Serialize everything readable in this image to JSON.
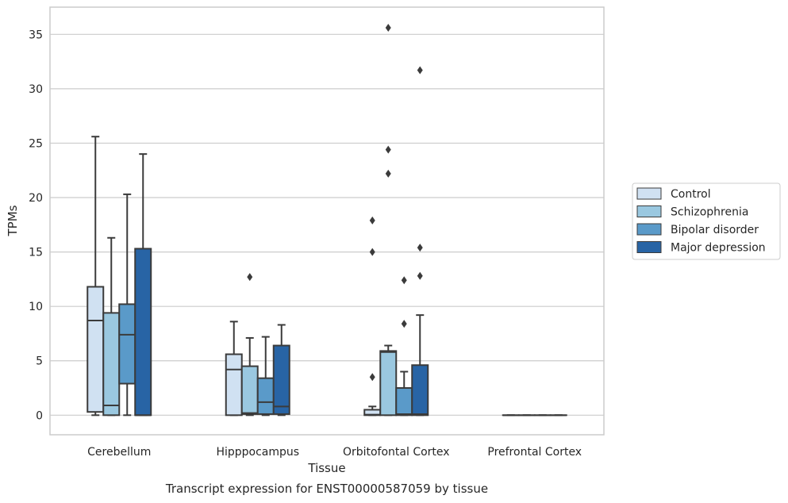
{
  "chart_data": {
    "type": "boxplot",
    "caption": "Transcript expression for ENST00000587059 by tissue",
    "xlabel": "Tissue",
    "ylabel": "TPMs",
    "ylim": [
      -1.8,
      37.5
    ],
    "yticks": [
      0,
      5,
      10,
      15,
      20,
      25,
      30,
      35
    ],
    "grid": true,
    "legend_position": "center-right",
    "categories": [
      "Cerebellum",
      "Hipppocampus",
      "Orbitofontal Cortex",
      "Prefrontal Cortex"
    ],
    "series": [
      {
        "name": "Control",
        "color": "#d0e1f2",
        "boxes": [
          {
            "whisker_low": 0,
            "q1": 0.3,
            "median": 8.7,
            "q3": 11.8,
            "whisker_high": 25.6,
            "outliers": []
          },
          {
            "whisker_low": 0,
            "q1": 0,
            "median": 4.2,
            "q3": 5.6,
            "whisker_high": 8.6,
            "outliers": []
          },
          {
            "whisker_low": 0,
            "q1": 0,
            "median": 0.05,
            "q3": 0.5,
            "whisker_high": 0.8,
            "outliers": [
              3.5,
              15.0,
              17.9
            ]
          },
          {
            "whisker_low": 0,
            "q1": 0,
            "median": 0,
            "q3": 0,
            "whisker_high": 0,
            "outliers": []
          }
        ]
      },
      {
        "name": "Schizophrenia",
        "color": "#9ac8e0",
        "boxes": [
          {
            "whisker_low": 0,
            "q1": 0,
            "median": 0.9,
            "q3": 9.4,
            "whisker_high": 16.3,
            "outliers": []
          },
          {
            "whisker_low": 0,
            "q1": 0.1,
            "median": 0.2,
            "q3": 4.5,
            "whisker_high": 7.1,
            "outliers": [
              12.7
            ]
          },
          {
            "whisker_low": 0,
            "q1": 0,
            "median": 5.8,
            "q3": 5.9,
            "whisker_high": 6.4,
            "outliers": [
              22.2,
              24.4,
              35.6
            ]
          },
          {
            "whisker_low": 0,
            "q1": 0,
            "median": 0,
            "q3": 0,
            "whisker_high": 0,
            "outliers": []
          }
        ]
      },
      {
        "name": "Bipolar disorder",
        "color": "#5a9ac9",
        "boxes": [
          {
            "whisker_low": 0,
            "q1": 2.9,
            "median": 7.4,
            "q3": 10.2,
            "whisker_high": 20.3,
            "outliers": []
          },
          {
            "whisker_low": 0,
            "q1": 0.1,
            "median": 1.2,
            "q3": 3.4,
            "whisker_high": 7.2,
            "outliers": []
          },
          {
            "whisker_low": 0,
            "q1": 0,
            "median": 0.1,
            "q3": 2.5,
            "whisker_high": 4.0,
            "outliers": [
              8.4,
              12.4
            ]
          },
          {
            "whisker_low": 0,
            "q1": 0,
            "median": 0,
            "q3": 0,
            "whisker_high": 0,
            "outliers": []
          }
        ]
      },
      {
        "name": "Major depression",
        "color": "#2864a5",
        "boxes": [
          {
            "whisker_low": 0,
            "q1": 0,
            "median": 0,
            "q3": 15.3,
            "whisker_high": 24.0,
            "outliers": []
          },
          {
            "whisker_low": 0,
            "q1": 0.1,
            "median": 0.8,
            "q3": 6.4,
            "whisker_high": 8.3,
            "outliers": []
          },
          {
            "whisker_low": 0,
            "q1": 0,
            "median": 0.1,
            "q3": 4.6,
            "whisker_high": 9.2,
            "outliers": [
              12.8,
              15.4,
              31.7
            ]
          },
          {
            "whisker_low": 0,
            "q1": 0,
            "median": 0,
            "q3": 0,
            "whisker_high": 0,
            "outliers": []
          }
        ]
      }
    ]
  }
}
